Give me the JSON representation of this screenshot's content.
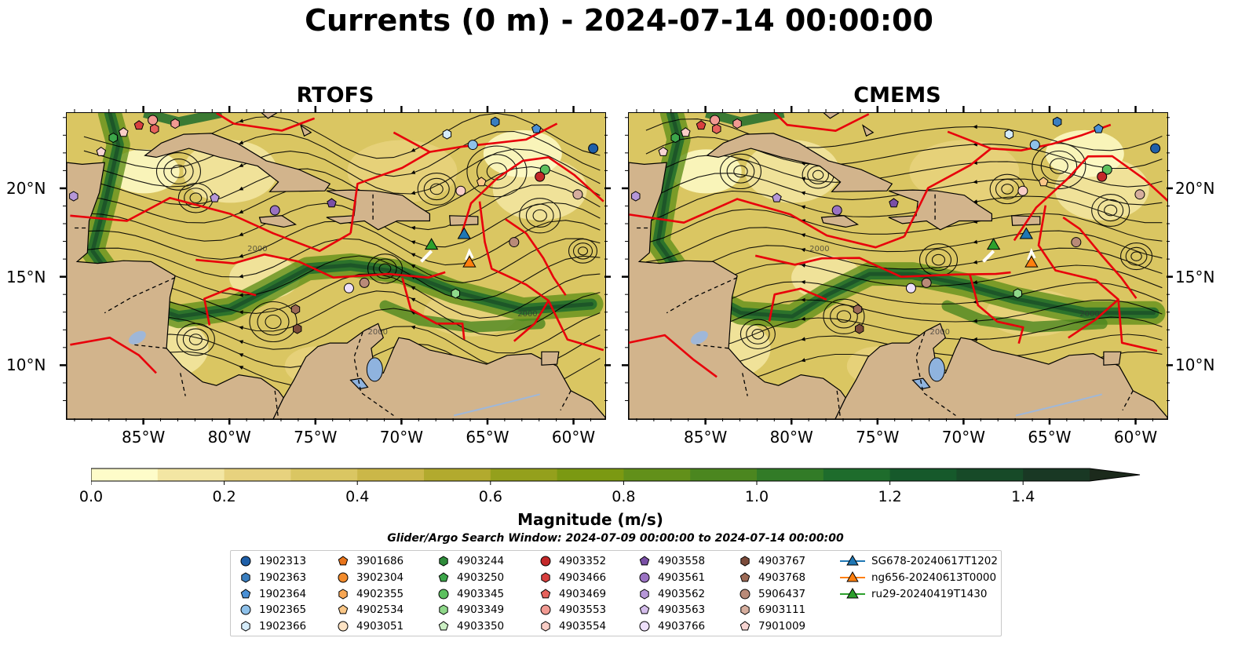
{
  "title": "Currents (0 m) - 2024-07-14 00:00:00",
  "panels": [
    {
      "title": "RTOFS"
    },
    {
      "title": "CMEMS"
    }
  ],
  "lon_ticks": [
    "85°W",
    "80°W",
    "75°W",
    "70°W",
    "65°W",
    "60°W"
  ],
  "lat_ticks": [
    "20°N",
    "15°N",
    "10°N"
  ],
  "map_extent": {
    "lon": [
      -89.5,
      -58.2
    ],
    "lat": [
      7.0,
      24.3
    ]
  },
  "colorbar": {
    "label": "Magnitude (m/s)",
    "ticks": [
      "0.0",
      "0.2",
      "0.4",
      "0.6",
      "0.8",
      "1.0",
      "1.2",
      "1.4"
    ],
    "range": [
      0.0,
      1.5
    ],
    "extend": "max",
    "colors": [
      "#fefcc9",
      "#f3e6a3",
      "#e7d27e",
      "#dac662",
      "#cbb748",
      "#b2aa2e",
      "#94a01c",
      "#7b9912",
      "#62901a",
      "#4b861f",
      "#327b27",
      "#1e6c2c",
      "#16592b",
      "#174a28",
      "#193824",
      "#1c2a1c"
    ]
  },
  "search_window": "Glider/Argo Search Window: 2024-07-09 00:00:00 to 2024-07-14 00:00:00",
  "legend": [
    {
      "label": "1902313",
      "marker": "circle",
      "color": "#1f5fa8"
    },
    {
      "label": "1902363",
      "marker": "hexagon",
      "color": "#3a7ebf"
    },
    {
      "label": "1902364",
      "marker": "pentagon",
      "color": "#4a90d6"
    },
    {
      "label": "1902365",
      "marker": "circle",
      "color": "#8ec1ea"
    },
    {
      "label": "1902366",
      "marker": "hexagon",
      "color": "#d5ecfa"
    },
    {
      "label": "3901686",
      "marker": "pentagon",
      "color": "#e8741b"
    },
    {
      "label": "3902304",
      "marker": "circle",
      "color": "#f28b2c"
    },
    {
      "label": "4902355",
      "marker": "hexagon",
      "color": "#f7a653"
    },
    {
      "label": "4902534",
      "marker": "pentagon",
      "color": "#fac787"
    },
    {
      "label": "4903051",
      "marker": "circle",
      "color": "#fde3c4"
    },
    {
      "label": "4903244",
      "marker": "hexagon",
      "color": "#2e8b3a"
    },
    {
      "label": "4903250",
      "marker": "pentagon",
      "color": "#3da64a"
    },
    {
      "label": "4903345",
      "marker": "circle",
      "color": "#5cc05e"
    },
    {
      "label": "4903349",
      "marker": "hexagon",
      "color": "#8fd88a"
    },
    {
      "label": "4903350",
      "marker": "pentagon",
      "color": "#ccf0c4"
    },
    {
      "label": "4903352",
      "marker": "circle",
      "color": "#c4282a"
    },
    {
      "label": "4903466",
      "marker": "hexagon",
      "color": "#d8403f"
    },
    {
      "label": "4903469",
      "marker": "pentagon",
      "color": "#e6625c"
    },
    {
      "label": "4903553",
      "marker": "circle",
      "color": "#f19a92"
    },
    {
      "label": "4903554",
      "marker": "hexagon",
      "color": "#f9cdc6"
    },
    {
      "label": "4903558",
      "marker": "pentagon",
      "color": "#7a4fa6"
    },
    {
      "label": "4903561",
      "marker": "circle",
      "color": "#9a72c2"
    },
    {
      "label": "4903562",
      "marker": "hexagon",
      "color": "#b697d8"
    },
    {
      "label": "4903563",
      "marker": "pentagon",
      "color": "#d4bdeb"
    },
    {
      "label": "4903766",
      "marker": "circle",
      "color": "#eee0fa"
    },
    {
      "label": "4903767",
      "marker": "hexagon",
      "color": "#7b4b3a"
    },
    {
      "label": "4903768",
      "marker": "pentagon",
      "color": "#9c6a56"
    },
    {
      "label": "5906437",
      "marker": "circle",
      "color": "#b98a78"
    },
    {
      "label": "6903111",
      "marker": "hexagon",
      "color": "#d6ae9e"
    },
    {
      "label": "7901009",
      "marker": "pentagon",
      "color": "#f7d4d2"
    },
    {
      "label": "SG678-20240617T1202",
      "marker": "triangle-line",
      "color": "#1f77b4"
    },
    {
      "label": "ng656-20240613T0000",
      "marker": "triangle-line",
      "color": "#ff7f0e"
    },
    {
      "label": "ru29-20240419T1430",
      "marker": "triangle-line",
      "color": "#2ca02c"
    }
  ],
  "map_floats": [
    {
      "lon": -86.8,
      "lat": 22.9,
      "panels": [
        0,
        1
      ],
      "marker": "hexagon",
      "color": "#3da64a"
    },
    {
      "lon": -86.2,
      "lat": 23.2,
      "panels": [
        0,
        1
      ],
      "marker": "pentagon",
      "color": "#f9cdc6"
    },
    {
      "lon": -87.5,
      "lat": 22.1,
      "panels": [
        0,
        1
      ],
      "marker": "pentagon",
      "color": "#f7d4d2"
    },
    {
      "lon": -85.3,
      "lat": 23.6,
      "panels": [
        0,
        1
      ],
      "marker": "pentagon",
      "color": "#d8403f"
    },
    {
      "lon": -84.4,
      "lat": 23.4,
      "panels": [
        0,
        1
      ],
      "marker": "hexagon",
      "color": "#e6625c"
    },
    {
      "lon": -84.5,
      "lat": 23.9,
      "panels": [
        0,
        1
      ],
      "marker": "circle",
      "color": "#f19a92"
    },
    {
      "lon": -83.2,
      "lat": 23.7,
      "panels": [
        0,
        1
      ],
      "marker": "hexagon",
      "color": "#f19a92"
    },
    {
      "lon": -89.1,
      "lat": 19.6,
      "panels": [
        0,
        1
      ],
      "marker": "hexagon",
      "color": "#b697d8"
    },
    {
      "lon": -80.9,
      "lat": 19.5,
      "panels": [
        0,
        1
      ],
      "marker": "pentagon",
      "color": "#b697d8"
    },
    {
      "lon": -77.4,
      "lat": 18.8,
      "panels": [
        0,
        1
      ],
      "marker": "circle",
      "color": "#9a72c2"
    },
    {
      "lon": -74.1,
      "lat": 19.2,
      "panels": [
        0,
        1
      ],
      "marker": "pentagon",
      "color": "#7a4fa6"
    },
    {
      "lon": -67.4,
      "lat": 23.1,
      "panels": [
        0,
        1
      ],
      "marker": "hexagon",
      "color": "#d5ecfa"
    },
    {
      "lon": -65.9,
      "lat": 22.5,
      "panels": [
        0,
        1
      ],
      "marker": "circle",
      "color": "#8ec1ea"
    },
    {
      "lon": -64.6,
      "lat": 23.8,
      "panels": [
        0,
        1
      ],
      "marker": "hexagon",
      "color": "#3a7ebf"
    },
    {
      "lon": -62.2,
      "lat": 23.4,
      "panels": [
        0,
        1
      ],
      "marker": "pentagon",
      "color": "#4a90d6"
    },
    {
      "lon": -58.9,
      "lat": 22.3,
      "panels": [
        0,
        1
      ],
      "marker": "circle",
      "color": "#1f5fa8"
    },
    {
      "lon": -61.7,
      "lat": 21.1,
      "panels": [
        0,
        1
      ],
      "marker": "circle",
      "color": "#5cc05e"
    },
    {
      "lon": -62.0,
      "lat": 20.7,
      "panels": [
        0,
        1
      ],
      "marker": "circle",
      "color": "#c4282a"
    },
    {
      "lon": -66.6,
      "lat": 19.9,
      "panels": [
        0,
        1
      ],
      "marker": "circle",
      "color": "#f9cdc6"
    },
    {
      "lon": -65.4,
      "lat": 20.4,
      "panels": [
        0,
        1
      ],
      "marker": "pentagon",
      "color": "#fac787"
    },
    {
      "lon": -59.8,
      "lat": 19.7,
      "panels": [
        0,
        1
      ],
      "marker": "circle",
      "color": "#d6ae9e"
    },
    {
      "lon": -63.5,
      "lat": 17.0,
      "panels": [
        0,
        1
      ],
      "marker": "circle",
      "color": "#b98a78"
    },
    {
      "lon": -73.1,
      "lat": 14.4,
      "panels": [
        0,
        1
      ],
      "marker": "circle",
      "color": "#eee0fa"
    },
    {
      "lon": -72.2,
      "lat": 14.7,
      "panels": [
        0,
        1
      ],
      "marker": "circle",
      "color": "#b98a78"
    },
    {
      "lon": -76.2,
      "lat": 13.2,
      "panels": [
        0,
        1
      ],
      "marker": "hexagon",
      "color": "#9c6a56"
    },
    {
      "lon": -76.1,
      "lat": 12.1,
      "panels": [
        0,
        1
      ],
      "marker": "hexagon",
      "color": "#7b4b3a"
    },
    {
      "lon": -66.9,
      "lat": 14.1,
      "panels": [
        0,
        1
      ],
      "marker": "hexagon",
      "color": "#8fd88a"
    }
  ],
  "map_gliders": [
    {
      "lon": -68.3,
      "lat": 16.8,
      "color": "#2ca02c"
    },
    {
      "lon": -66.4,
      "lat": 17.4,
      "color": "#1f77b4"
    },
    {
      "lon": -66.1,
      "lat": 15.8,
      "color": "#ff7f0e"
    }
  ],
  "isobath_label": "2000"
}
